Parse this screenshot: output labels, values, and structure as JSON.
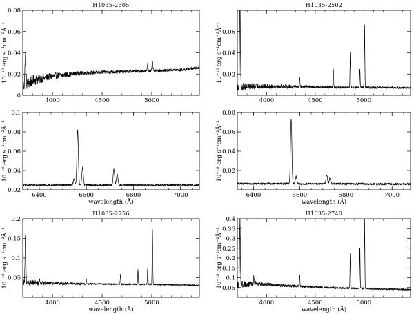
{
  "chart_data": [
    {
      "type": "line",
      "title": "H1035-2605",
      "xlabel": "",
      "ylabel": "10⁻¹⁸ erg s⁻¹cm⁻²Å⁻¹",
      "xlim": [
        3700,
        5480
      ],
      "ylim": [
        0,
        0.08
      ],
      "xticks": [
        4000,
        4500,
        5000
      ],
      "yticks": [
        0,
        0.02,
        0.04,
        0.06,
        0.08
      ],
      "ytick_labels": [
        "0",
        "0.02",
        "0.04",
        "0.06",
        "0.08"
      ],
      "continuum": [
        [
          3700,
          0.008
        ],
        [
          3800,
          0.014
        ],
        [
          4000,
          0.018
        ],
        [
          4300,
          0.021
        ],
        [
          4600,
          0.022
        ],
        [
          5000,
          0.023
        ],
        [
          5300,
          0.024
        ],
        [
          5480,
          0.026
        ]
      ],
      "noise": [
        [
          3700,
          0.006
        ],
        [
          3950,
          0.0035
        ],
        [
          4300,
          0.0018
        ],
        [
          5480,
          0.0012
        ]
      ],
      "lines": [
        {
          "x": 3727,
          "y": 0.038,
          "width": 5
        },
        {
          "x": 4959,
          "y": 0.03,
          "width": 4
        },
        {
          "x": 5007,
          "y": 0.032,
          "width": 4
        }
      ]
    },
    {
      "type": "line",
      "title": "H1035-2502",
      "xlabel": "",
      "ylabel": "10⁻¹⁸ erg s⁻¹cm⁻²Å⁻¹",
      "xlim": [
        3700,
        5480
      ],
      "ylim": [
        0,
        0.08
      ],
      "xticks": [
        4000,
        4500,
        5000
      ],
      "yticks": [
        0.02,
        0.04,
        0.06
      ],
      "ytick_labels": [
        "0.02",
        "0.04",
        "0.06"
      ],
      "continuum": [
        [
          3700,
          0.008
        ],
        [
          3900,
          0.0085
        ],
        [
          4300,
          0.0082
        ],
        [
          4800,
          0.0075
        ],
        [
          5480,
          0.007
        ]
      ],
      "noise": [
        [
          3700,
          0.004
        ],
        [
          4000,
          0.0022
        ],
        [
          4500,
          0.0012
        ],
        [
          5480,
          0.001
        ]
      ],
      "lines": [
        {
          "x": 3727,
          "y": 0.09,
          "width": 4
        },
        {
          "x": 4340,
          "y": 0.018,
          "width": 3
        },
        {
          "x": 4686,
          "y": 0.026,
          "width": 3
        },
        {
          "x": 4861,
          "y": 0.041,
          "width": 3
        },
        {
          "x": 4959,
          "y": 0.026,
          "width": 3
        },
        {
          "x": 5007,
          "y": 0.066,
          "width": 3
        }
      ]
    },
    {
      "type": "line",
      "title": "",
      "xlabel": "wavelength (Å)",
      "ylabel": "10⁻¹⁸ erg s⁻¹cm⁻²Å⁻¹",
      "xlim": [
        6330,
        7080
      ],
      "ylim": [
        0.02,
        0.1
      ],
      "xticks": [
        6400,
        6600,
        6800,
        7000
      ],
      "yticks": [
        0.02,
        0.04,
        0.06,
        0.08,
        0.1
      ],
      "ytick_labels": [
        "0.02",
        "0.04",
        "0.06",
        "0.08",
        "0.1"
      ],
      "continuum": [
        [
          6330,
          0.025
        ],
        [
          7080,
          0.025
        ]
      ],
      "noise": [
        [
          6330,
          0.001
        ],
        [
          7080,
          0.001
        ]
      ],
      "lines": [
        {
          "x": 6548,
          "y": 0.031,
          "width": 3
        },
        {
          "x": 6563,
          "y": 0.082,
          "width": 3
        },
        {
          "x": 6584,
          "y": 0.043,
          "width": 3
        },
        {
          "x": 6717,
          "y": 0.042,
          "width": 3
        },
        {
          "x": 6731,
          "y": 0.037,
          "width": 3
        }
      ]
    },
    {
      "type": "line",
      "title": "",
      "xlabel": "wavelength (Å)",
      "ylabel": "10⁻¹⁸ erg s⁻¹cm⁻²Å⁻¹",
      "xlim": [
        6330,
        7080
      ],
      "ylim": [
        0,
        0.08
      ],
      "xticks": [
        6400,
        6600,
        6800,
        7000
      ],
      "yticks": [
        0.02,
        0.04,
        0.06,
        0.08
      ],
      "ytick_labels": [
        "0.02",
        "0.04",
        "0.06",
        "0.08"
      ],
      "continuum": [
        [
          6330,
          0.0065
        ],
        [
          7080,
          0.006
        ]
      ],
      "noise": [
        [
          6330,
          0.001
        ],
        [
          7080,
          0.001
        ]
      ],
      "lines": [
        {
          "x": 6563,
          "y": 0.074,
          "width": 3
        },
        {
          "x": 6584,
          "y": 0.014,
          "width": 3
        },
        {
          "x": 6717,
          "y": 0.016,
          "width": 3
        },
        {
          "x": 6731,
          "y": 0.012,
          "width": 3
        }
      ]
    },
    {
      "type": "line",
      "title": "H1035-2756",
      "xlabel": "wavelength (Å)",
      "ylabel": "10⁻¹⁸ erg s⁻¹cm⁻²Å⁻¹",
      "xlim": [
        3700,
        5480
      ],
      "ylim": [
        0,
        0.2
      ],
      "xticks": [
        4000,
        4500,
        5000
      ],
      "yticks": [
        0.05,
        0.1,
        0.15,
        0.2
      ],
      "ytick_labels": [
        "0.05",
        "0.1",
        "0.15",
        "0.2"
      ],
      "continuum": [
        [
          3700,
          0.038
        ],
        [
          4000,
          0.036
        ],
        [
          4500,
          0.034
        ],
        [
          5000,
          0.033
        ],
        [
          5480,
          0.031
        ]
      ],
      "noise": [
        [
          3700,
          0.009
        ],
        [
          4000,
          0.004
        ],
        [
          4500,
          0.002
        ],
        [
          5480,
          0.0015
        ]
      ],
      "lines": [
        {
          "x": 3727,
          "y": 0.16,
          "width": 4
        },
        {
          "x": 3869,
          "y": 0.05,
          "width": 3
        },
        {
          "x": 4340,
          "y": 0.045,
          "width": 3
        },
        {
          "x": 4686,
          "y": 0.06,
          "width": 3
        },
        {
          "x": 4861,
          "y": 0.07,
          "width": 3
        },
        {
          "x": 4959,
          "y": 0.075,
          "width": 3
        },
        {
          "x": 5007,
          "y": 0.175,
          "width": 3
        }
      ]
    },
    {
      "type": "line",
      "title": "H1035-2740",
      "xlabel": "wavelength (Å)",
      "ylabel": "10⁻¹⁸ erg s⁻¹cm⁻²Å⁻¹",
      "xlim": [
        3700,
        5480
      ],
      "ylim": [
        0,
        0.4
      ],
      "xticks": [
        4000,
        4500,
        5000
      ],
      "yticks": [
        0.05,
        0.1,
        0.15,
        0.2,
        0.25,
        0.3,
        0.35,
        0.4
      ],
      "ytick_labels": [
        "0.05",
        "0.1",
        "0.15",
        "0.2",
        "0.25",
        "0.3",
        "0.35",
        "0.4"
      ],
      "continuum": [
        [
          3700,
          0.065
        ],
        [
          3900,
          0.07
        ],
        [
          4200,
          0.06
        ],
        [
          4600,
          0.05
        ],
        [
          5000,
          0.045
        ],
        [
          5480,
          0.04
        ]
      ],
      "noise": [
        [
          3700,
          0.02
        ],
        [
          3950,
          0.01
        ],
        [
          4500,
          0.005
        ],
        [
          5480,
          0.004
        ]
      ],
      "lines": [
        {
          "x": 3727,
          "y": 0.4,
          "width": 4
        },
        {
          "x": 3869,
          "y": 0.11,
          "width": 3
        },
        {
          "x": 4340,
          "y": 0.12,
          "width": 3
        },
        {
          "x": 4861,
          "y": 0.22,
          "width": 3
        },
        {
          "x": 4959,
          "y": 0.26,
          "width": 3
        },
        {
          "x": 5007,
          "y": 0.4,
          "width": 3
        }
      ]
    }
  ]
}
